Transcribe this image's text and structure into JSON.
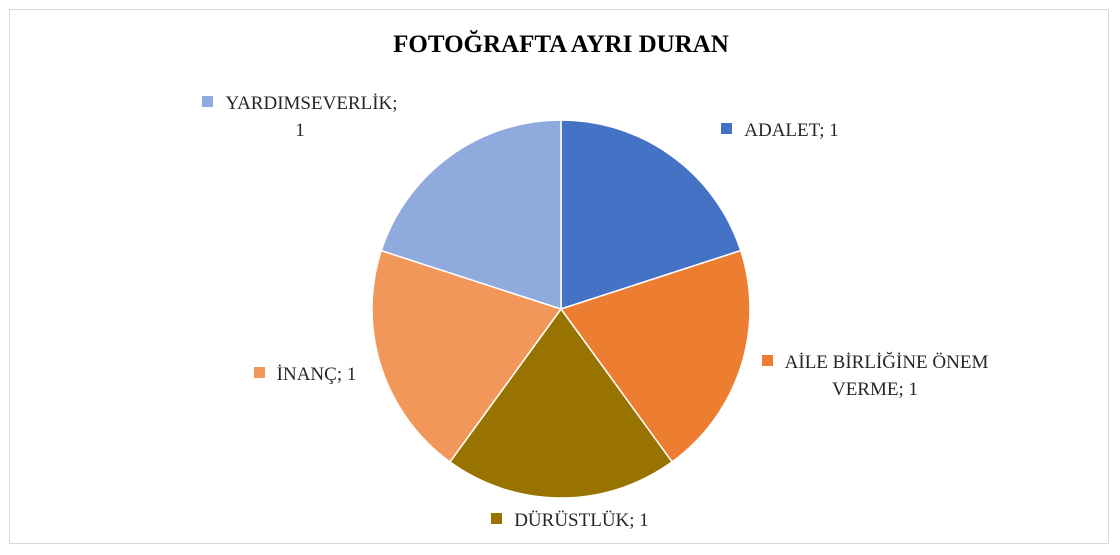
{
  "chart_data": {
    "type": "pie",
    "title": "FOTOĞRAFTA AYRI DURAN",
    "categories": [
      "ADALET",
      "AİLE BİRLİĞİNE ÖNEM VERME",
      "DÜRÜSTLÜK",
      "İNANÇ",
      "YARDIMSEVERLİK"
    ],
    "values": [
      1,
      1,
      1,
      1,
      1
    ],
    "colors": [
      "#4472c4",
      "#ed7d31",
      "#997300",
      "#f1975a",
      "#8faadc"
    ]
  }
}
